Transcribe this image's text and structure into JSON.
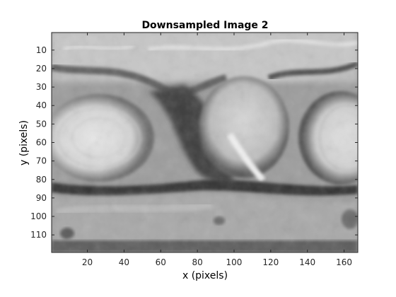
{
  "figure": {
    "title": "Downsampled Image 2",
    "xlabel": "x (pixels)",
    "ylabel": "y (pixels)",
    "x_ticks": [
      "20",
      "40",
      "60",
      "80",
      "100",
      "120",
      "140",
      "160"
    ],
    "y_ticks": [
      "10",
      "20",
      "30",
      "40",
      "50",
      "60",
      "70",
      "80",
      "90",
      "100",
      "110"
    ],
    "x_range": [
      0.5,
      167.5
    ],
    "y_range": [
      0.5,
      119.5
    ],
    "colormap": "grayscale",
    "image_description_hint": "grayscale tissue/structure image with two round bright blobs left and right, darker band around y=80"
  }
}
